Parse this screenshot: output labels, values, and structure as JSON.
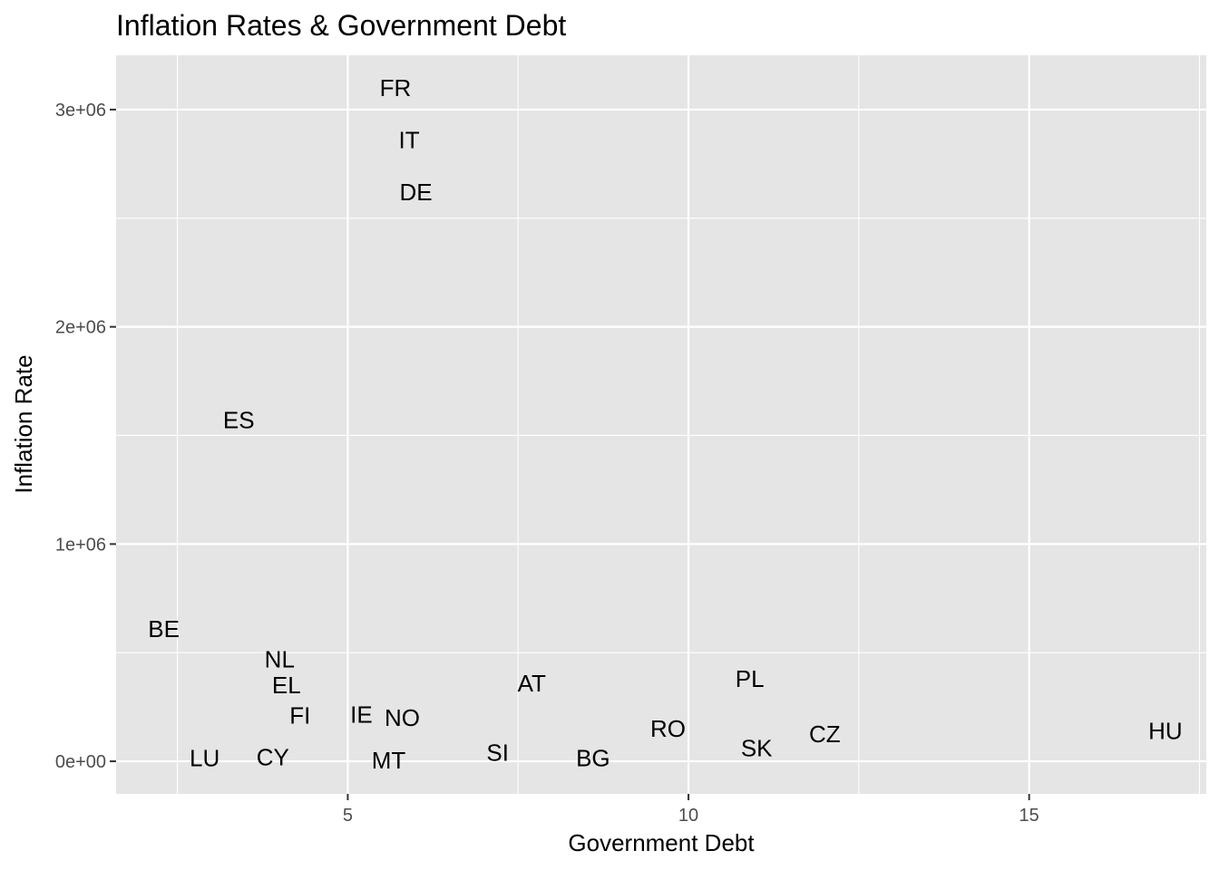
{
  "chart_data": {
    "type": "scatter",
    "title": "Inflation Rates & Government Debt",
    "xlabel": "Government Debt",
    "ylabel": "Inflation Rate",
    "xlim": [
      1.6,
      17.6
    ],
    "ylim": [
      -150000,
      3250000
    ],
    "x_ticks": [
      5,
      10,
      15
    ],
    "x_tick_labels": [
      "5",
      "10",
      "15"
    ],
    "x_minor_ticks": [
      2.5,
      7.5,
      12.5,
      17.5
    ],
    "y_ticks": [
      0,
      1000000,
      2000000,
      3000000
    ],
    "y_tick_labels": [
      "0e+00",
      "1e+06",
      "2e+06",
      "3e+06"
    ],
    "y_minor_ticks": [
      500000,
      1500000,
      2500000
    ],
    "background": "#e5e5e5",
    "grid": true,
    "points": [
      {
        "label": "FR",
        "x": 5.7,
        "y": 3100000
      },
      {
        "label": "IT",
        "x": 5.9,
        "y": 2860000
      },
      {
        "label": "DE",
        "x": 6.0,
        "y": 2620000
      },
      {
        "label": "ES",
        "x": 3.4,
        "y": 1570000
      },
      {
        "label": "BE",
        "x": 2.3,
        "y": 610000
      },
      {
        "label": "NL",
        "x": 4.0,
        "y": 470000
      },
      {
        "label": "EL",
        "x": 4.1,
        "y": 350000
      },
      {
        "label": "FI",
        "x": 4.3,
        "y": 210000
      },
      {
        "label": "IE",
        "x": 5.2,
        "y": 215000
      },
      {
        "label": "NO",
        "x": 5.8,
        "y": 200000
      },
      {
        "label": "AT",
        "x": 7.7,
        "y": 360000
      },
      {
        "label": "PL",
        "x": 10.9,
        "y": 380000
      },
      {
        "label": "RO",
        "x": 9.7,
        "y": 150000
      },
      {
        "label": "SK",
        "x": 11.0,
        "y": 60000
      },
      {
        "label": "CZ",
        "x": 12.0,
        "y": 125000
      },
      {
        "label": "HU",
        "x": 17.0,
        "y": 140000
      },
      {
        "label": "LU",
        "x": 2.9,
        "y": 15000
      },
      {
        "label": "CY",
        "x": 3.9,
        "y": 20000
      },
      {
        "label": "MT",
        "x": 5.6,
        "y": 5000
      },
      {
        "label": "SI",
        "x": 7.2,
        "y": 40000
      },
      {
        "label": "BG",
        "x": 8.6,
        "y": 15000
      }
    ]
  }
}
